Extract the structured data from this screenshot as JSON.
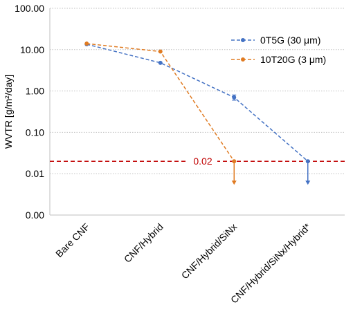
{
  "chart_data": {
    "type": "line",
    "y_scale": "log",
    "title": "",
    "xlabel": "",
    "ylabel": "WVTR [g/m²/day]",
    "ylim": [
      0.001,
      100
    ],
    "y_ticks": [
      {
        "value": 100,
        "label": "100.00"
      },
      {
        "value": 10,
        "label": "10.00"
      },
      {
        "value": 1,
        "label": "1.00"
      },
      {
        "value": 0.1,
        "label": "0.10"
      },
      {
        "value": 0.01,
        "label": "0.01"
      },
      {
        "value": 0.001,
        "label": "0.00"
      }
    ],
    "categories": [
      "Bare CNF",
      "CNF/Hybrid",
      "CNF/Hybrid/SiNx",
      "CNF/Hybrid/SiNx/Hybrid*"
    ],
    "grid": true,
    "legend_position": "top-right",
    "series": [
      {
        "name": "0T5G (30 μm)",
        "color": "#4472C4",
        "values": [
          13.5,
          4.8,
          0.7,
          0.02
        ],
        "error": [
          0,
          0,
          0.1,
          0
        ],
        "upper_limit_index": 3
      },
      {
        "name": "10T20G (3 μm)",
        "color": "#E07B22",
        "values": [
          14,
          9,
          0.02,
          null
        ],
        "error": [
          0,
          0,
          0,
          0
        ],
        "upper_limit_index": 2
      }
    ],
    "reference_line": {
      "value": 0.02,
      "label": "0.02",
      "color": "#C00000"
    }
  }
}
